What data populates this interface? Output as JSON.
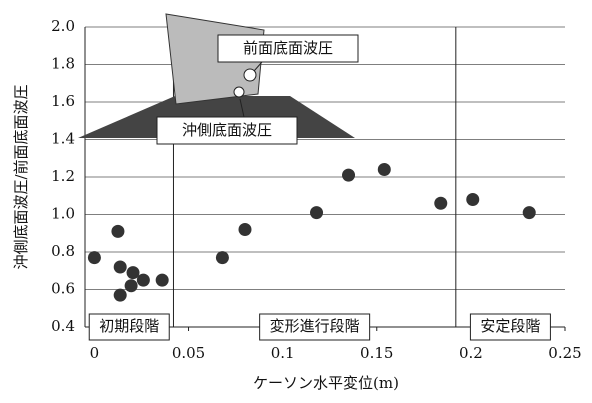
{
  "chart_data": {
    "type": "scatter",
    "x_label": "ケーソン水平変位(m)",
    "y_label": "沖側底面波圧/前面底面波圧",
    "x": [
      0,
      0.0125,
      0.0137,
      0.0137,
      0.0205,
      0.0195,
      0.026,
      0.036,
      0.068,
      0.08,
      0.118,
      0.135,
      0.154,
      0.184,
      0.201,
      0.231
    ],
    "values": [
      0.77,
      0.91,
      0.72,
      0.57,
      0.69,
      0.62,
      0.65,
      0.65,
      0.77,
      0.92,
      1.01,
      1.21,
      1.24,
      1.06,
      1.08,
      1.01
    ],
    "color": "#333333",
    "xlim": [
      -0.005,
      0.25
    ],
    "ylim": [
      0.4,
      2.0
    ],
    "xticks": [
      0,
      0.05,
      0.1,
      0.15,
      0.2,
      0.25
    ],
    "yticks": [
      0.4,
      0.6,
      0.8,
      {
        "value": 1.0,
        "label": "1.0"
      },
      1.2,
      1.4,
      1.6,
      1.8,
      {
        "value": 2.0,
        "label": "2.0"
      }
    ],
    "grid": true,
    "stage_lines": [
      0.042,
      0.192
    ],
    "stages": [
      "初期段階",
      "変形進行段階",
      "安定段階"
    ],
    "annotations": [
      "前面底面波圧",
      "沖側底面波圧"
    ]
  }
}
